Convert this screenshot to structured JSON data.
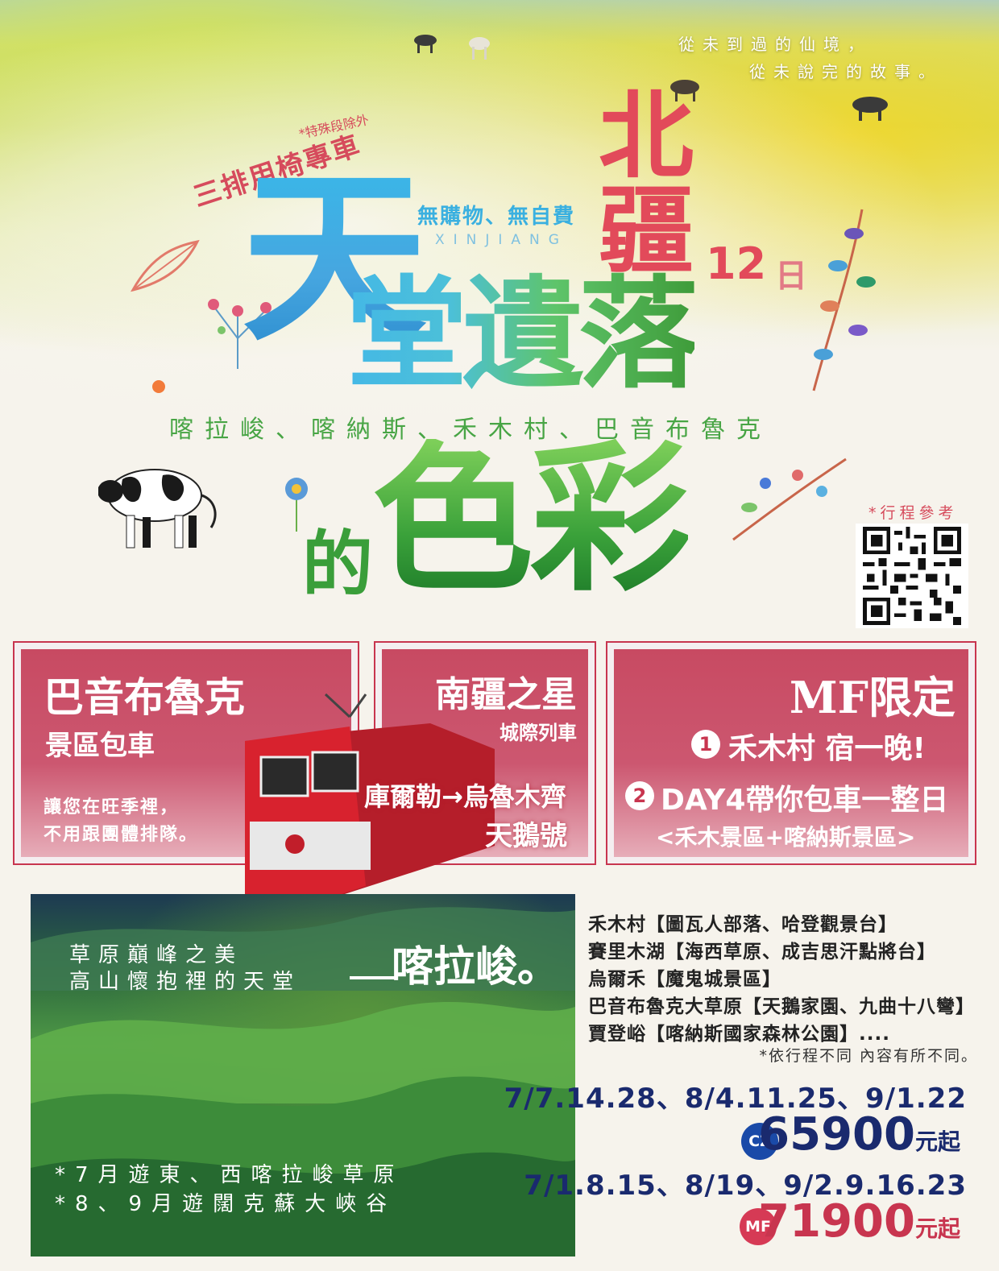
{
  "slogan": [
    "從未到過的仙境，",
    "從未說完的故事。"
  ],
  "seat": {
    "note": "*特殊段除外",
    "title": "三排用椅專車"
  },
  "title": {
    "tian": "天",
    "rest": "堂遺落",
    "north": "北疆",
    "days_num": "12",
    "days_unit": "日",
    "de": "的",
    "secai": "色彩"
  },
  "noshop": "無購物、無自費",
  "xinjiang": "XINJIANG",
  "places": "喀拉峻、喀納斯、禾木村、巴音布魯克",
  "qr_label": "*行程參考",
  "panels": {
    "p1": {
      "title": "巴音布魯克",
      "subtitle": "景區包車",
      "line1": "讓您在旺季裡，",
      "line2": "不用跟團體排隊。"
    },
    "p2": {
      "title": "南疆之星",
      "subtitle": "城際列車",
      "route": "庫爾勒→烏魯木齊",
      "name": "天鵝號"
    },
    "p3": {
      "title": "MF限定",
      "item1_num": "1",
      "item1": "禾木村 宿一晚!",
      "item2_num": "2",
      "item2": "DAY4帶你包車一整日",
      "item2_sub": "<禾木景區+喀納斯景區>"
    }
  },
  "photo": {
    "line1": "草原巔峰之美",
    "line2": "高山懷抱裡的天堂",
    "big": "喀拉峻。",
    "note1": "*7月遊東、西喀拉峻草原",
    "note2": "*8、9月遊闊克蘇大峽谷"
  },
  "itinerary": [
    "禾木村【圖瓦人部落、哈登觀景台】",
    "賽里木湖【海西草原、成吉思汗點將台】",
    "烏爾禾【魔鬼城景區】",
    "巴音布魯克大草原【天鵝家園、九曲十八彎】",
    "賈登峪【喀納斯國家森林公園】...."
  ],
  "itinerary_note": "*依行程不同 內容有所不同。",
  "departures": [
    {
      "dates": "7/7.14.28、8/4.11.25、9/1.22",
      "airline": "CZ",
      "price": "65900",
      "unit": "元起"
    },
    {
      "dates": "7/1.8.15、8/19、9/2.9.16.23",
      "airline": "MF",
      "price": "71900",
      "unit": "元起"
    }
  ],
  "colors": {
    "accent": "#c8354f",
    "navy": "#1a2a6e",
    "green": "#48a545",
    "blue": "#3ab7e8"
  }
}
